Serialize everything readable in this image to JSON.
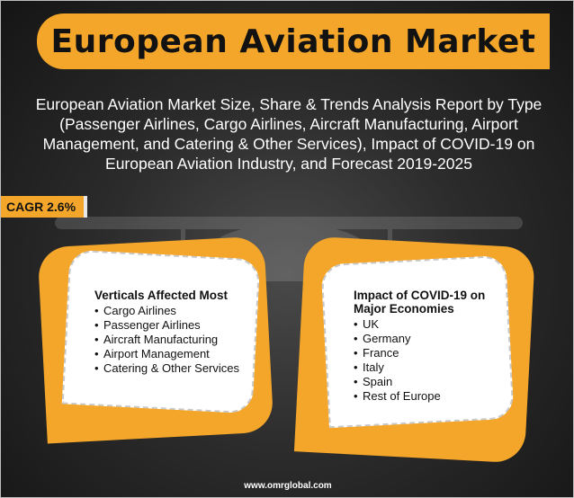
{
  "title": "European Aviation Market",
  "subtitle": "European Aviation Market Size, Share & Trends Analysis Report by Type (Passenger Airlines, Cargo Airlines, Aircraft Manufacturing, Airport Management, and Catering & Other Services), Impact of COVID-19 on European Aviation Industry, and Forecast 2019-2025",
  "cagr": "CAGR 2.6%",
  "left_card": {
    "heading": "Verticals Affected Most",
    "items": [
      "Cargo Airlines",
      "Passenger Airlines",
      "Aircraft Manufacturing",
      "Airport Management",
      "Catering & Other Services"
    ]
  },
  "right_card": {
    "heading": "Impact of COVID-19 on Major Economies",
    "items": [
      "UK",
      "Germany",
      "France",
      "Italy",
      "Spain",
      "Rest of Europe"
    ]
  },
  "footer": "www.omrglobal.com",
  "colors": {
    "accent": "#f4a62a",
    "background": "#2c2c2c"
  }
}
